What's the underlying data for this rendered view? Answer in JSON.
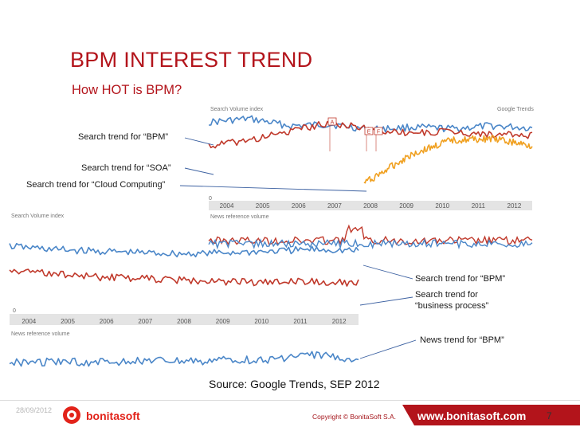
{
  "slide": {
    "title": "BPM INTEREST TREND",
    "subtitle": "How HOT is BPM?",
    "source": "Source: Google Trends, SEP 2012",
    "date": "28/09/2012",
    "brand": "bonitasoft",
    "copyright": "Copyright © BonitaSoft S.A.",
    "website": "www.bonitasoft.com",
    "page_number": "7"
  },
  "colors": {
    "title": "#b3141b",
    "series_blue": "#4a86c8",
    "series_red": "#c0392b",
    "series_orange": "#f0a020",
    "axis_strip": "#e4e4e4",
    "footer_bar": "#b3141b"
  },
  "chart_data": [
    {
      "type": "line",
      "chart_label": "Search Volume index",
      "brand_label": "Google Trends",
      "news_label": "News reference volume",
      "x": [
        "2004",
        "2005",
        "2006",
        "2007",
        "2008",
        "2009",
        "2010",
        "2011",
        "2012"
      ],
      "series": [
        {
          "name": "Search trend for “BPM”",
          "color": "#4a86c8",
          "values": [
            1.05,
            1.1,
            1.0,
            1.02,
            0.95,
            0.98,
            0.96,
            1.0,
            0.97
          ]
        },
        {
          "name": "Search trend for “SOA”",
          "color": "#c0392b",
          "values": [
            0.72,
            0.8,
            0.92,
            1.05,
            0.95,
            0.9,
            0.92,
            0.88,
            0.86
          ]
        },
        {
          "name": "Search trend for “Cloud Computing”",
          "color": "#f0a020",
          "values": [
            0,
            0,
            0,
            0,
            0.25,
            0.6,
            0.8,
            0.82,
            0.72
          ]
        }
      ],
      "annotation_flags": [
        "A",
        "E",
        "F"
      ],
      "zero_label": "0"
    },
    {
      "type": "line",
      "chart_label": "Search Volume index",
      "news_label": "News reference volume",
      "x": [
        "2004",
        "2005",
        "2006",
        "2007",
        "2008",
        "2009",
        "2010",
        "2011",
        "2012"
      ],
      "series": [
        {
          "name": "Search trend for “BPM”",
          "color": "#4a86c8",
          "values": [
            1.0,
            0.95,
            0.92,
            0.9,
            0.88,
            0.9,
            0.92,
            0.95,
            0.93
          ]
        },
        {
          "name": "Search trend for “business process”",
          "color": "#c0392b",
          "values": [
            0.62,
            0.58,
            0.52,
            0.5,
            0.47,
            0.45,
            0.44,
            0.45,
            0.43
          ]
        },
        {
          "name": "News trend for “BPM”",
          "color": "#4a86c8",
          "values": [
            0.2,
            0.22,
            0.2,
            0.25,
            0.22,
            0.28,
            0.3,
            0.45,
            0.32
          ]
        }
      ],
      "zero_label": "0"
    }
  ],
  "labels": {
    "bpm_top": "Search trend for “BPM”",
    "soa": "Search trend for “SOA”",
    "cloud": "Search trend for “Cloud Computing”",
    "bpm_bottom": "Search trend for “BPM”",
    "business_process_1": "Search trend for",
    "business_process_2": "“business process”",
    "news_bpm": "News trend for “BPM”"
  }
}
